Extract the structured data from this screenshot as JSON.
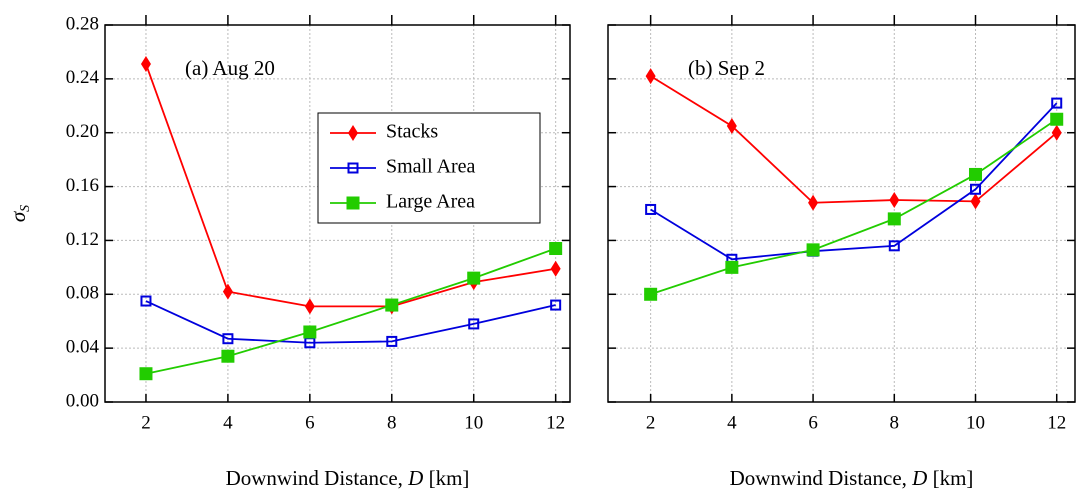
{
  "chart_data": [
    {
      "type": "line",
      "annotation": "(a) Aug 20",
      "ylabel": {
        "symbol": "σ",
        "subscript": "S"
      },
      "xlabel": [
        "Downwind Distance, ",
        "D",
        " [km]"
      ],
      "x": [
        2,
        4,
        6,
        8,
        10,
        12
      ],
      "xlim": [
        1,
        12.35
      ],
      "xticks": [
        2,
        4,
        6,
        8,
        10,
        12
      ],
      "ylim": [
        0,
        0.28
      ],
      "yticks": [
        {
          "value": 0,
          "label": "0.00"
        },
        {
          "value": 0.04,
          "label": "0.04"
        },
        {
          "value": 0.08,
          "label": "0.08"
        },
        {
          "value": 0.12,
          "label": "0.12"
        },
        {
          "value": 0.16,
          "label": "0.16"
        },
        {
          "value": 0.2,
          "label": "0.20"
        },
        {
          "value": 0.24,
          "label": "0.24"
        },
        {
          "value": 0.28,
          "label": "0.28"
        }
      ],
      "grid": true,
      "legend": true,
      "series": [
        {
          "name": "Stacks",
          "color": "#ff0000",
          "marker": "diamond",
          "values": [
            0.251,
            0.082,
            0.071,
            0.071,
            0.089,
            0.099
          ]
        },
        {
          "name": "Small Area",
          "color": "#0000dd",
          "marker": "open-square",
          "values": [
            0.075,
            0.047,
            0.044,
            0.045,
            0.058,
            0.072
          ]
        },
        {
          "name": "Large Area",
          "color": "#22cc00",
          "marker": "square",
          "values": [
            0.021,
            0.034,
            0.052,
            0.072,
            0.092,
            0.114
          ]
        }
      ]
    },
    {
      "type": "line",
      "annotation": "(b) Sep 2",
      "xlabel": [
        "Downwind Distance, ",
        "D",
        " [km]"
      ],
      "x": [
        2,
        4,
        6,
        8,
        10,
        12
      ],
      "xlim": [
        0.95,
        12.45
      ],
      "xticks": [
        2,
        4,
        6,
        8,
        10,
        12
      ],
      "ylim": [
        0,
        0.28
      ],
      "yticks": [
        0,
        0.04,
        0.08,
        0.12,
        0.16,
        0.2,
        0.24,
        0.28
      ],
      "grid": true,
      "legend": false,
      "series": [
        {
          "color": "#ff0000",
          "marker": "diamond",
          "values": [
            0.242,
            0.205,
            0.148,
            0.15,
            0.149,
            0.2
          ]
        },
        {
          "color": "#0000dd",
          "marker": "open-square",
          "values": [
            0.143,
            0.106,
            0.112,
            0.116,
            0.158,
            0.222
          ]
        },
        {
          "color": "#22cc00",
          "marker": "square",
          "values": [
            0.08,
            0.1,
            0.113,
            0.136,
            0.169,
            0.21
          ]
        }
      ]
    }
  ]
}
